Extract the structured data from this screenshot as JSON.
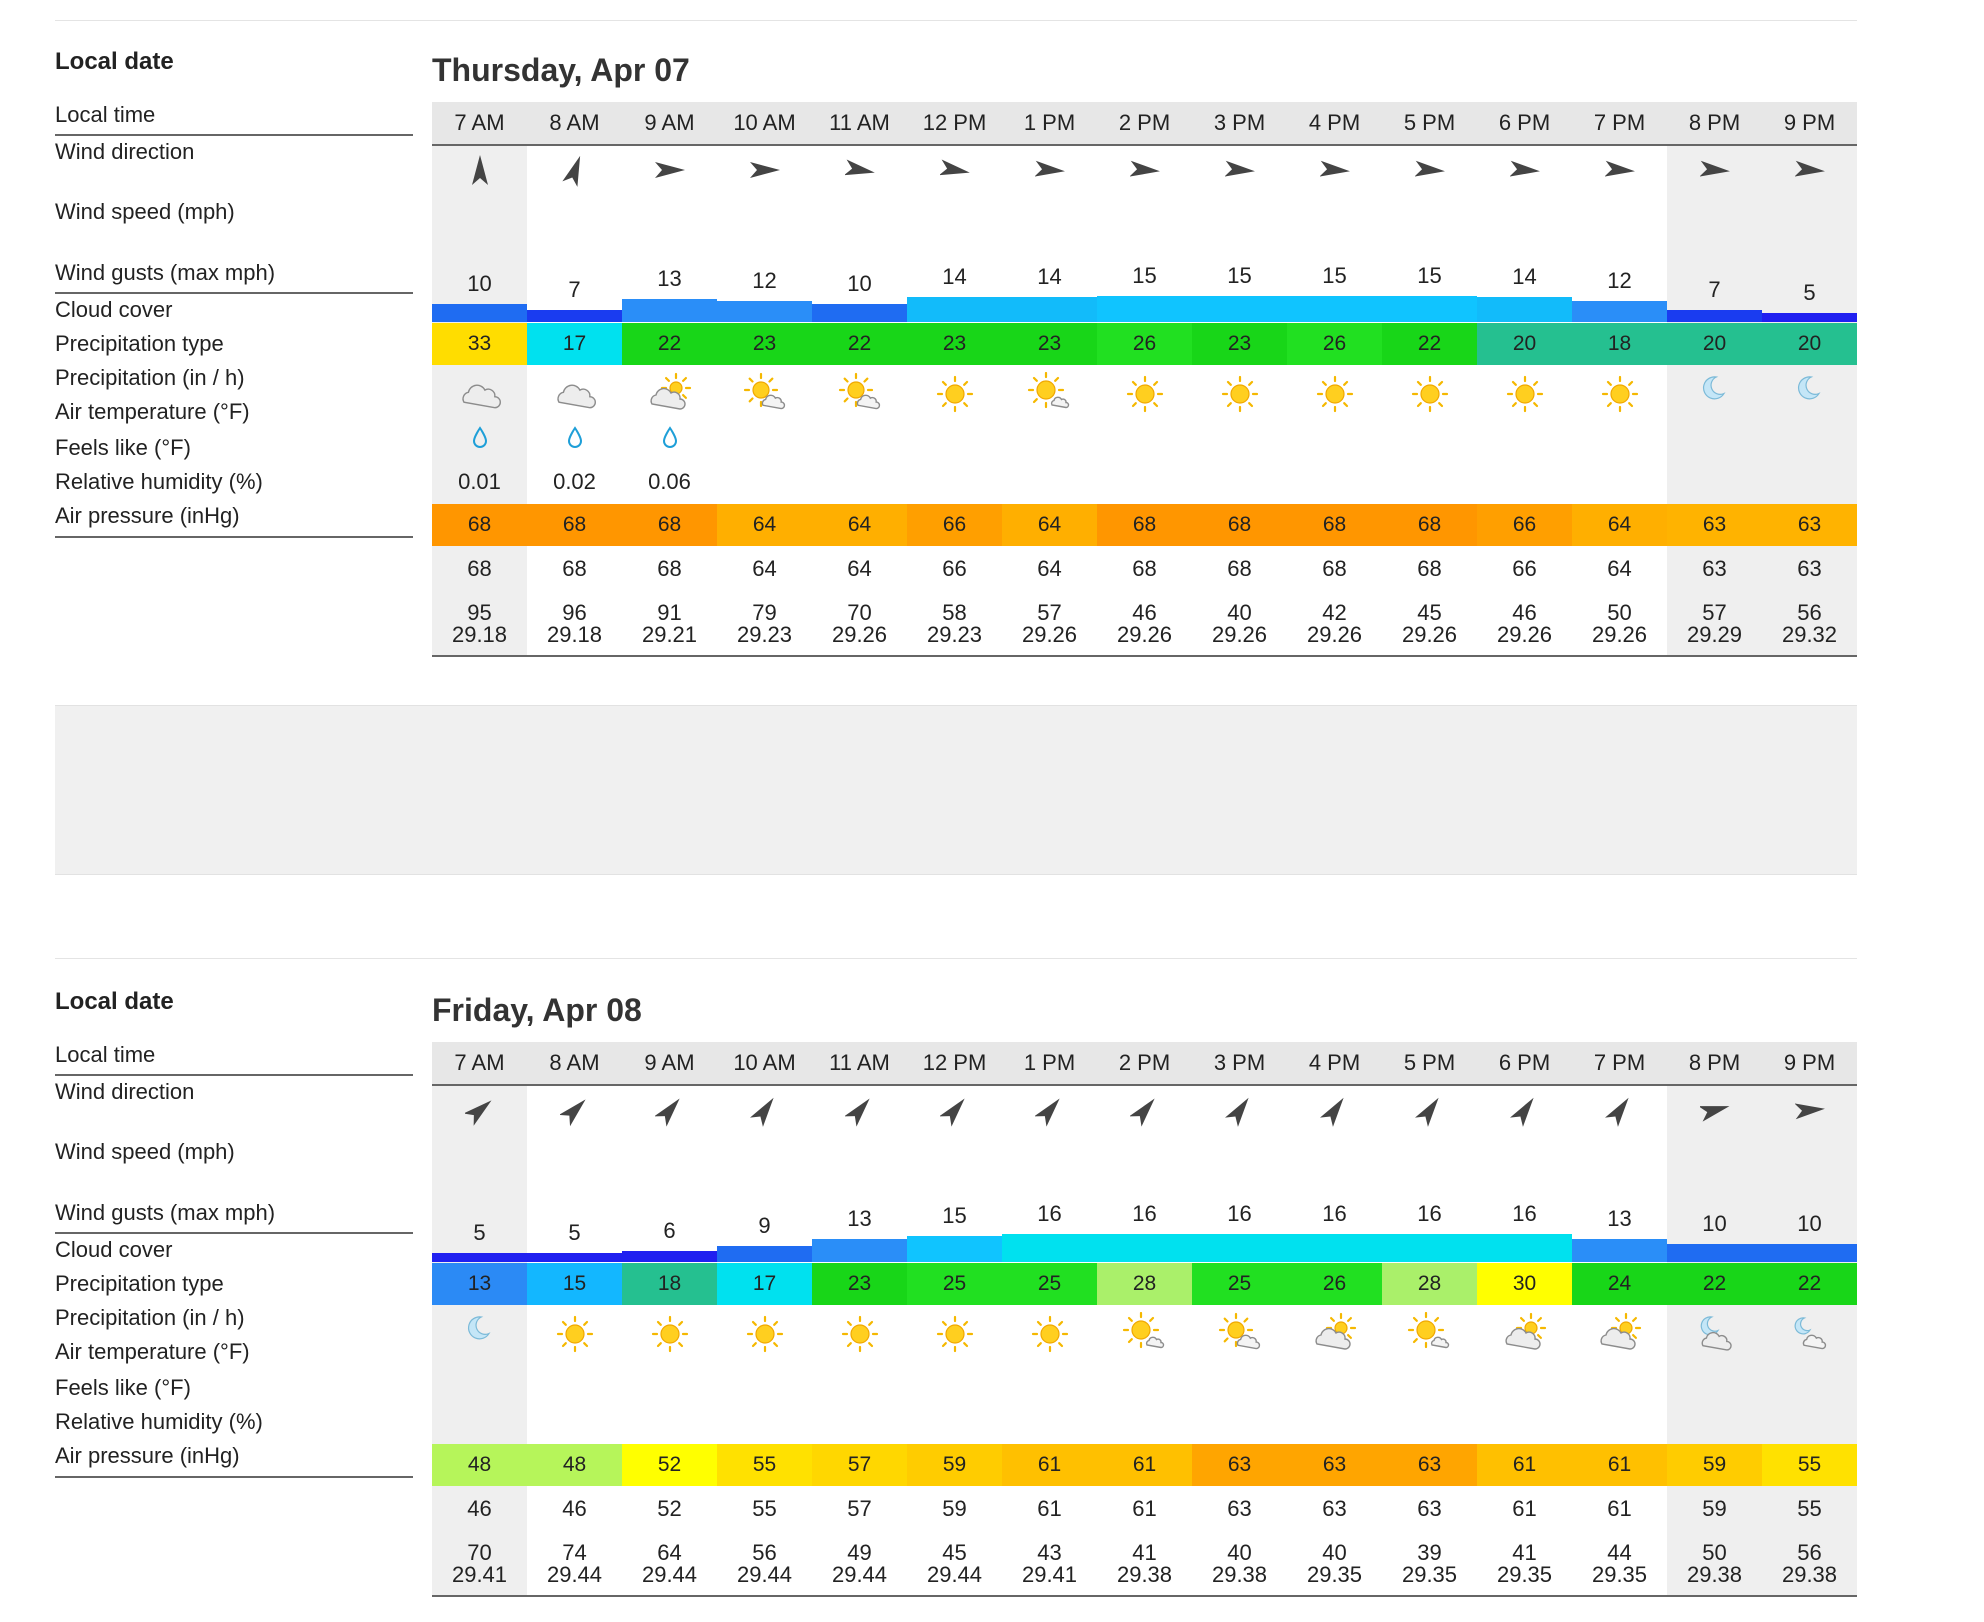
{
  "labels": {
    "local_date": "Local date",
    "local_time": "Local time",
    "wind_direction": "Wind direction",
    "wind_speed": "Wind speed (mph)",
    "wind_gusts": "Wind gusts (max mph)",
    "cloud_cover": "Cloud cover",
    "precip_type": "Precipitation type",
    "precip": "Precipitation (in / h)",
    "air_temp": "Air temperature (°F)",
    "feels_like": "Feels like (°F)",
    "humidity": "Relative humidity (%)",
    "pressure": "Air pressure (inHg)"
  },
  "days": [
    {
      "date": "Thursday, Apr 07",
      "hours": [
        {
          "time": "7 AM",
          "dir": 0,
          "speed": "10",
          "gust": "33",
          "gust_color": "#ffdd00",
          "cloud": "cloudy",
          "precip_icon": "drop",
          "precip": "0.01",
          "air": "68",
          "air_color": "#ff9600",
          "feels": "68",
          "humidity": "95",
          "pressure": "29.18",
          "shade": true
        },
        {
          "time": "8 AM",
          "dir": 20,
          "speed": "7",
          "gust": "17",
          "gust_color": "#00e1ef",
          "cloud": "cloudy",
          "precip_icon": "drop",
          "precip": "0.02",
          "air": "68",
          "air_color": "#ff9600",
          "feels": "68",
          "humidity": "96",
          "pressure": "29.18",
          "shade": false
        },
        {
          "time": "9 AM",
          "dir": 90,
          "speed": "13",
          "gust": "22",
          "gust_color": "#18d618",
          "cloud": "cloudy-sun",
          "precip_icon": "drop",
          "precip": "0.06",
          "air": "68",
          "air_color": "#ff9600",
          "feels": "68",
          "humidity": "91",
          "pressure": "29.21",
          "shade": false
        },
        {
          "time": "10 AM",
          "dir": 90,
          "speed": "12",
          "gust": "23",
          "gust_color": "#18d618",
          "cloud": "sun-cloud",
          "precip_icon": "",
          "precip": "",
          "air": "64",
          "air_color": "#ffaf00",
          "feels": "64",
          "humidity": "79",
          "pressure": "29.23",
          "shade": false
        },
        {
          "time": "11 AM",
          "dir": 100,
          "speed": "10",
          "gust": "22",
          "gust_color": "#18d618",
          "cloud": "sun-cloud",
          "precip_icon": "",
          "precip": "",
          "air": "64",
          "air_color": "#ffaf00",
          "feels": "64",
          "humidity": "70",
          "pressure": "29.26",
          "shade": false
        },
        {
          "time": "12 PM",
          "dir": 100,
          "speed": "14",
          "gust": "23",
          "gust_color": "#18d618",
          "cloud": "sun",
          "precip_icon": "",
          "precip": "",
          "air": "66",
          "air_color": "#ff9f00",
          "feels": "66",
          "humidity": "58",
          "pressure": "29.23",
          "shade": false
        },
        {
          "time": "1 PM",
          "dir": 95,
          "speed": "14",
          "gust": "23",
          "gust_color": "#18d618",
          "cloud": "sun-small-cloud",
          "precip_icon": "",
          "precip": "",
          "air": "64",
          "air_color": "#ffaf00",
          "feels": "64",
          "humidity": "57",
          "pressure": "29.26",
          "shade": false
        },
        {
          "time": "2 PM",
          "dir": 95,
          "speed": "15",
          "gust": "26",
          "gust_color": "#21e021",
          "cloud": "sun",
          "precip_icon": "",
          "precip": "",
          "air": "68",
          "air_color": "#ff9600",
          "feels": "68",
          "humidity": "46",
          "pressure": "29.26",
          "shade": false
        },
        {
          "time": "3 PM",
          "dir": 95,
          "speed": "15",
          "gust": "23",
          "gust_color": "#18d618",
          "cloud": "sun",
          "precip_icon": "",
          "precip": "",
          "air": "68",
          "air_color": "#ff9600",
          "feels": "68",
          "humidity": "40",
          "pressure": "29.26",
          "shade": false
        },
        {
          "time": "4 PM",
          "dir": 95,
          "speed": "15",
          "gust": "26",
          "gust_color": "#21e021",
          "cloud": "sun",
          "precip_icon": "",
          "precip": "",
          "air": "68",
          "air_color": "#ff9600",
          "feels": "68",
          "humidity": "42",
          "pressure": "29.26",
          "shade": false
        },
        {
          "time": "5 PM",
          "dir": 95,
          "speed": "15",
          "gust": "22",
          "gust_color": "#18d618",
          "cloud": "sun",
          "precip_icon": "",
          "precip": "",
          "air": "68",
          "air_color": "#ff9600",
          "feels": "68",
          "humidity": "45",
          "pressure": "29.26",
          "shade": false
        },
        {
          "time": "6 PM",
          "dir": 95,
          "speed": "14",
          "gust": "20",
          "gust_color": "#25c090",
          "cloud": "sun",
          "precip_icon": "",
          "precip": "",
          "air": "66",
          "air_color": "#ff9f00",
          "feels": "66",
          "humidity": "46",
          "pressure": "29.26",
          "shade": false
        },
        {
          "time": "7 PM",
          "dir": 95,
          "speed": "12",
          "gust": "18",
          "gust_color": "#25c090",
          "cloud": "sun",
          "precip_icon": "",
          "precip": "",
          "air": "64",
          "air_color": "#ffaf00",
          "feels": "64",
          "humidity": "50",
          "pressure": "29.26",
          "shade": false
        },
        {
          "time": "8 PM",
          "dir": 95,
          "speed": "7",
          "gust": "20",
          "gust_color": "#25c090",
          "cloud": "moon",
          "precip_icon": "",
          "precip": "",
          "air": "63",
          "air_color": "#ffb300",
          "feels": "63",
          "humidity": "57",
          "pressure": "29.29",
          "shade": true
        },
        {
          "time": "9 PM",
          "dir": 95,
          "speed": "5",
          "gust": "20",
          "gust_color": "#25c090",
          "cloud": "moon",
          "precip_icon": "",
          "precip": "",
          "air": "63",
          "air_color": "#ffb300",
          "feels": "63",
          "humidity": "56",
          "pressure": "29.32",
          "shade": true
        }
      ]
    },
    {
      "date": "Friday, Apr 08",
      "hours": [
        {
          "time": "7 AM",
          "dir": 50,
          "speed": "5",
          "gust": "13",
          "gust_color": "#2b8af5",
          "cloud": "moon",
          "precip_icon": "",
          "precip": "",
          "air": "48",
          "air_color": "#b6f55a",
          "feels": "46",
          "humidity": "70",
          "pressure": "29.41",
          "shade": true
        },
        {
          "time": "8 AM",
          "dir": 45,
          "speed": "5",
          "gust": "15",
          "gust_color": "#13b7ff",
          "cloud": "sun",
          "precip_icon": "",
          "precip": "",
          "air": "48",
          "air_color": "#b6f55a",
          "feels": "46",
          "humidity": "74",
          "pressure": "29.44",
          "shade": false
        },
        {
          "time": "9 AM",
          "dir": 40,
          "speed": "6",
          "gust": "18",
          "gust_color": "#25c090",
          "cloud": "sun",
          "precip_icon": "",
          "precip": "",
          "air": "52",
          "air_color": "#ffff00",
          "feels": "52",
          "humidity": "64",
          "pressure": "29.44",
          "shade": false
        },
        {
          "time": "10 AM",
          "dir": 35,
          "speed": "9",
          "gust": "17",
          "gust_color": "#00e1ef",
          "cloud": "sun",
          "precip_icon": "",
          "precip": "",
          "air": "55",
          "air_color": "#ffe100",
          "feels": "55",
          "humidity": "56",
          "pressure": "29.44",
          "shade": false
        },
        {
          "time": "11 AM",
          "dir": 40,
          "speed": "13",
          "gust": "23",
          "gust_color": "#18d618",
          "cloud": "sun",
          "precip_icon": "",
          "precip": "",
          "air": "57",
          "air_color": "#ffd700",
          "feels": "57",
          "humidity": "49",
          "pressure": "29.44",
          "shade": false
        },
        {
          "time": "12 PM",
          "dir": 40,
          "speed": "15",
          "gust": "25",
          "gust_color": "#21e021",
          "cloud": "sun",
          "precip_icon": "",
          "precip": "",
          "air": "59",
          "air_color": "#ffcc00",
          "feels": "59",
          "humidity": "45",
          "pressure": "29.44",
          "shade": false
        },
        {
          "time": "1 PM",
          "dir": 40,
          "speed": "16",
          "gust": "25",
          "gust_color": "#21e021",
          "cloud": "sun",
          "precip_icon": "",
          "precip": "",
          "air": "61",
          "air_color": "#ffc000",
          "feels": "61",
          "humidity": "43",
          "pressure": "29.41",
          "shade": false
        },
        {
          "time": "2 PM",
          "dir": 40,
          "speed": "16",
          "gust": "28",
          "gust_color": "#aaf06a",
          "cloud": "sun-small-cloud",
          "precip_icon": "",
          "precip": "",
          "air": "61",
          "air_color": "#ffc000",
          "feels": "61",
          "humidity": "41",
          "pressure": "29.38",
          "shade": false
        },
        {
          "time": "3 PM",
          "dir": 35,
          "speed": "16",
          "gust": "25",
          "gust_color": "#21e021",
          "cloud": "sun-cloud",
          "precip_icon": "",
          "precip": "",
          "air": "63",
          "air_color": "#ffa500",
          "feels": "63",
          "humidity": "40",
          "pressure": "29.38",
          "shade": false
        },
        {
          "time": "4 PM",
          "dir": 35,
          "speed": "16",
          "gust": "26",
          "gust_color": "#21e021",
          "cloud": "cloudy-sun",
          "precip_icon": "",
          "precip": "",
          "air": "63",
          "air_color": "#ffa500",
          "feels": "63",
          "humidity": "40",
          "pressure": "29.35",
          "shade": false
        },
        {
          "time": "5 PM",
          "dir": 35,
          "speed": "16",
          "gust": "28",
          "gust_color": "#aaf06a",
          "cloud": "sun-small-cloud",
          "precip_icon": "",
          "precip": "",
          "air": "63",
          "air_color": "#ffa500",
          "feels": "63",
          "humidity": "39",
          "pressure": "29.35",
          "shade": false
        },
        {
          "time": "6 PM",
          "dir": 35,
          "speed": "16",
          "gust": "30",
          "gust_color": "#ffff00",
          "cloud": "cloudy-sun",
          "precip_icon": "",
          "precip": "",
          "air": "61",
          "air_color": "#ffc000",
          "feels": "61",
          "humidity": "41",
          "pressure": "29.35",
          "shade": false
        },
        {
          "time": "7 PM",
          "dir": 35,
          "speed": "13",
          "gust": "24",
          "gust_color": "#18d618",
          "cloud": "cloudy-sun",
          "precip_icon": "",
          "precip": "",
          "air": "61",
          "air_color": "#ffc000",
          "feels": "61",
          "humidity": "44",
          "pressure": "29.35",
          "shade": false
        },
        {
          "time": "8 PM",
          "dir": 75,
          "speed": "10",
          "gust": "22",
          "gust_color": "#18d618",
          "cloud": "moon-cloud",
          "precip_icon": "",
          "precip": "",
          "air": "59",
          "air_color": "#ffcc00",
          "feels": "59",
          "humidity": "50",
          "pressure": "29.38",
          "shade": true
        },
        {
          "time": "9 PM",
          "dir": 85,
          "speed": "10",
          "gust": "22",
          "gust_color": "#18d618",
          "cloud": "moon-small-cloud",
          "precip_icon": "",
          "precip": "",
          "air": "55",
          "air_color": "#ffe100",
          "feels": "55",
          "humidity": "56",
          "pressure": "29.38",
          "shade": true
        }
      ]
    }
  ]
}
